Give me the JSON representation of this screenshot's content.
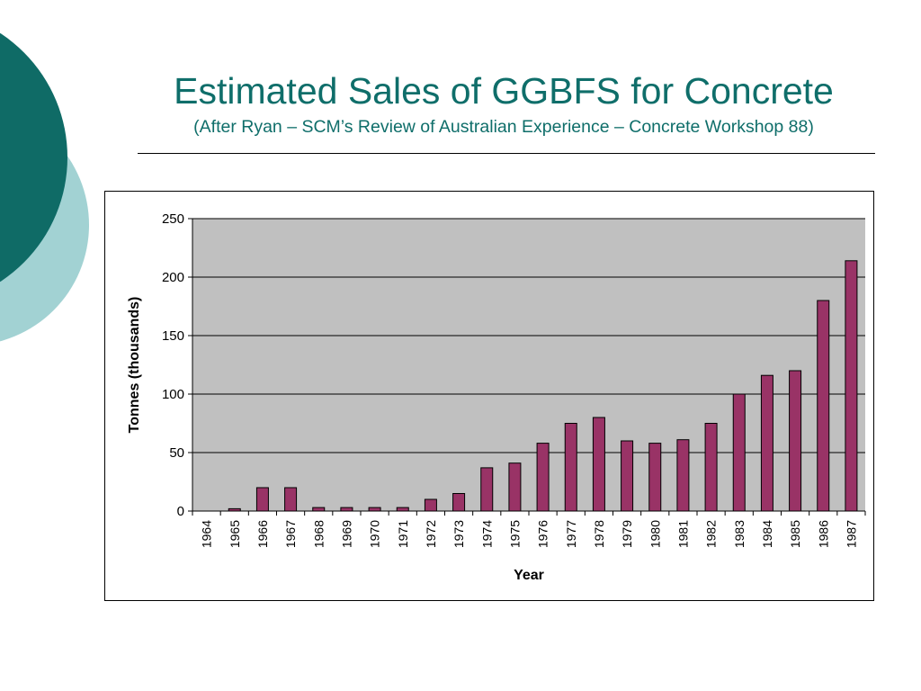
{
  "slide": {
    "title": "Estimated Sales of GGBFS for Concrete",
    "subtitle": "(After Ryan – SCM’s Review of Australian Experience – Concrete Workshop 88)"
  },
  "colors": {
    "title": "#0f6e6a",
    "deco_dark": "#0f6b66",
    "deco_light": "#a2d2d3",
    "bar": "#993366",
    "plot_bg": "#c0c0c0"
  },
  "chart_data": {
    "type": "bar",
    "xlabel": "Year",
    "ylabel": "Tonnes (thousands)",
    "ylim": [
      0,
      250
    ],
    "yticks": [
      0,
      50,
      100,
      150,
      200,
      250
    ],
    "grid": true,
    "categories": [
      "1964",
      "1965",
      "1966",
      "1967",
      "1968",
      "1969",
      "1970",
      "1971",
      "1972",
      "1973",
      "1974",
      "1975",
      "1976",
      "1977",
      "1978",
      "1979",
      "1980",
      "1981",
      "1982",
      "1983",
      "1984",
      "1985",
      "1986",
      "1987"
    ],
    "values": [
      0,
      2,
      20,
      20,
      3,
      3,
      3,
      3,
      10,
      15,
      37,
      41,
      58,
      75,
      80,
      60,
      58,
      61,
      75,
      100,
      116,
      120,
      180,
      214
    ]
  }
}
